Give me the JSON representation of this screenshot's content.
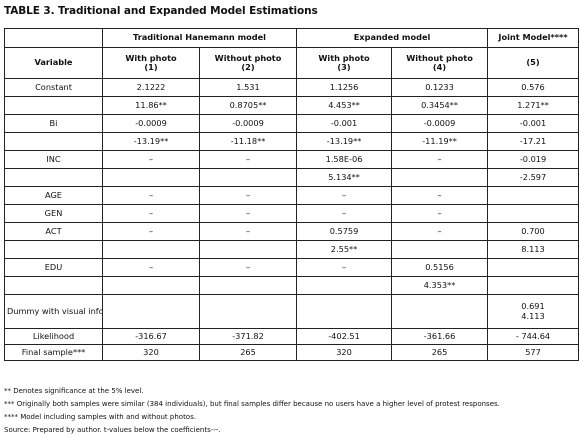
{
  "title": "TABLE 3. Traditional and Expanded Model Estimations",
  "header": {
    "group_traditional": "Traditional Hanemann model",
    "group_expanded": "Expanded model",
    "group_joint": "Joint Model****",
    "variable": "Variable",
    "col1_name": "With photo",
    "col1_num": "(1)",
    "col2_name": "Without photo",
    "col2_num": "(2)",
    "col3_name": "With photo",
    "col3_num": "(3)",
    "col4_name": "Without photo",
    "col4_num": "(4)",
    "col5_num": "(5)"
  },
  "rows": [
    {
      "label": "Constant",
      "c1": "2.1222",
      "c2": "1.531",
      "c3": "1.1256",
      "c4": "0.1233",
      "c5": "0.576"
    },
    {
      "label": "",
      "c1": "11.86**",
      "c2": "0.8705**",
      "c3": "4.453**",
      "c4": "0.3454**",
      "c5": "1.271**"
    },
    {
      "label": "Bi",
      "c1": "-0.0009",
      "c2": "-0.0009",
      "c3": "-0.001",
      "c4": "-0.0009",
      "c5": "-0.001"
    },
    {
      "label": "",
      "c1": "-13.19**",
      "c2": "-11.18**",
      "c3": "-13.19**",
      "c4": "-11.19**",
      "c5": "-17.21"
    },
    {
      "label": "INC",
      "c1": "–",
      "c2": "–",
      "c3": "1.58E-06",
      "c4": "–",
      "c5": "-0.019"
    },
    {
      "label": "",
      "c1": "",
      "c2": "",
      "c3": "5.134**",
      "c4": "",
      "c5": "-2.597"
    },
    {
      "label": "AGE",
      "c1": "–",
      "c2": "–",
      "c3": "–",
      "c4": "–",
      "c5": ""
    },
    {
      "label": "GEN",
      "c1": "–",
      "c2": "–",
      "c3": "–",
      "c4": "–",
      "c5": ""
    },
    {
      "label": "ACT",
      "c1": "–",
      "c2": "–",
      "c3": "0.5759",
      "c4": "–",
      "c5": "0.700"
    },
    {
      "label": "",
      "c1": "",
      "c2": "",
      "c3": "2.55**",
      "c4": "",
      "c5": "8.113"
    },
    {
      "label": "EDU",
      "c1": "–",
      "c2": "–",
      "c3": "–",
      "c4": "0.5156",
      "c5": ""
    },
    {
      "label": "",
      "c1": "",
      "c2": "",
      "c3": "",
      "c4": "4.353**",
      "c5": ""
    }
  ],
  "dummy": {
    "label": "Dummy with visual information",
    "c5_a": "0.691",
    "c5_b": "4.113"
  },
  "likelihood": {
    "label": "Likelihood",
    "c1": "-316.67",
    "c2": "-371.82",
    "c3": "-402.51",
    "c4": "-361.66",
    "c5": "- 744.64"
  },
  "final_sample": {
    "label": "Final sample***",
    "c1": "320",
    "c2": "265",
    "c3": "320",
    "c4": "265",
    "c5": "577"
  },
  "footnotes": [
    "** Denotes significance at the 5% level.",
    "*** Originally both samples were similar (384 individuals), but final samples differ because no users have a higher level of protest responses.",
    "**** Model including samples with and without photos.",
    "Source: Prepared by author. t-values below the coefficients---."
  ]
}
